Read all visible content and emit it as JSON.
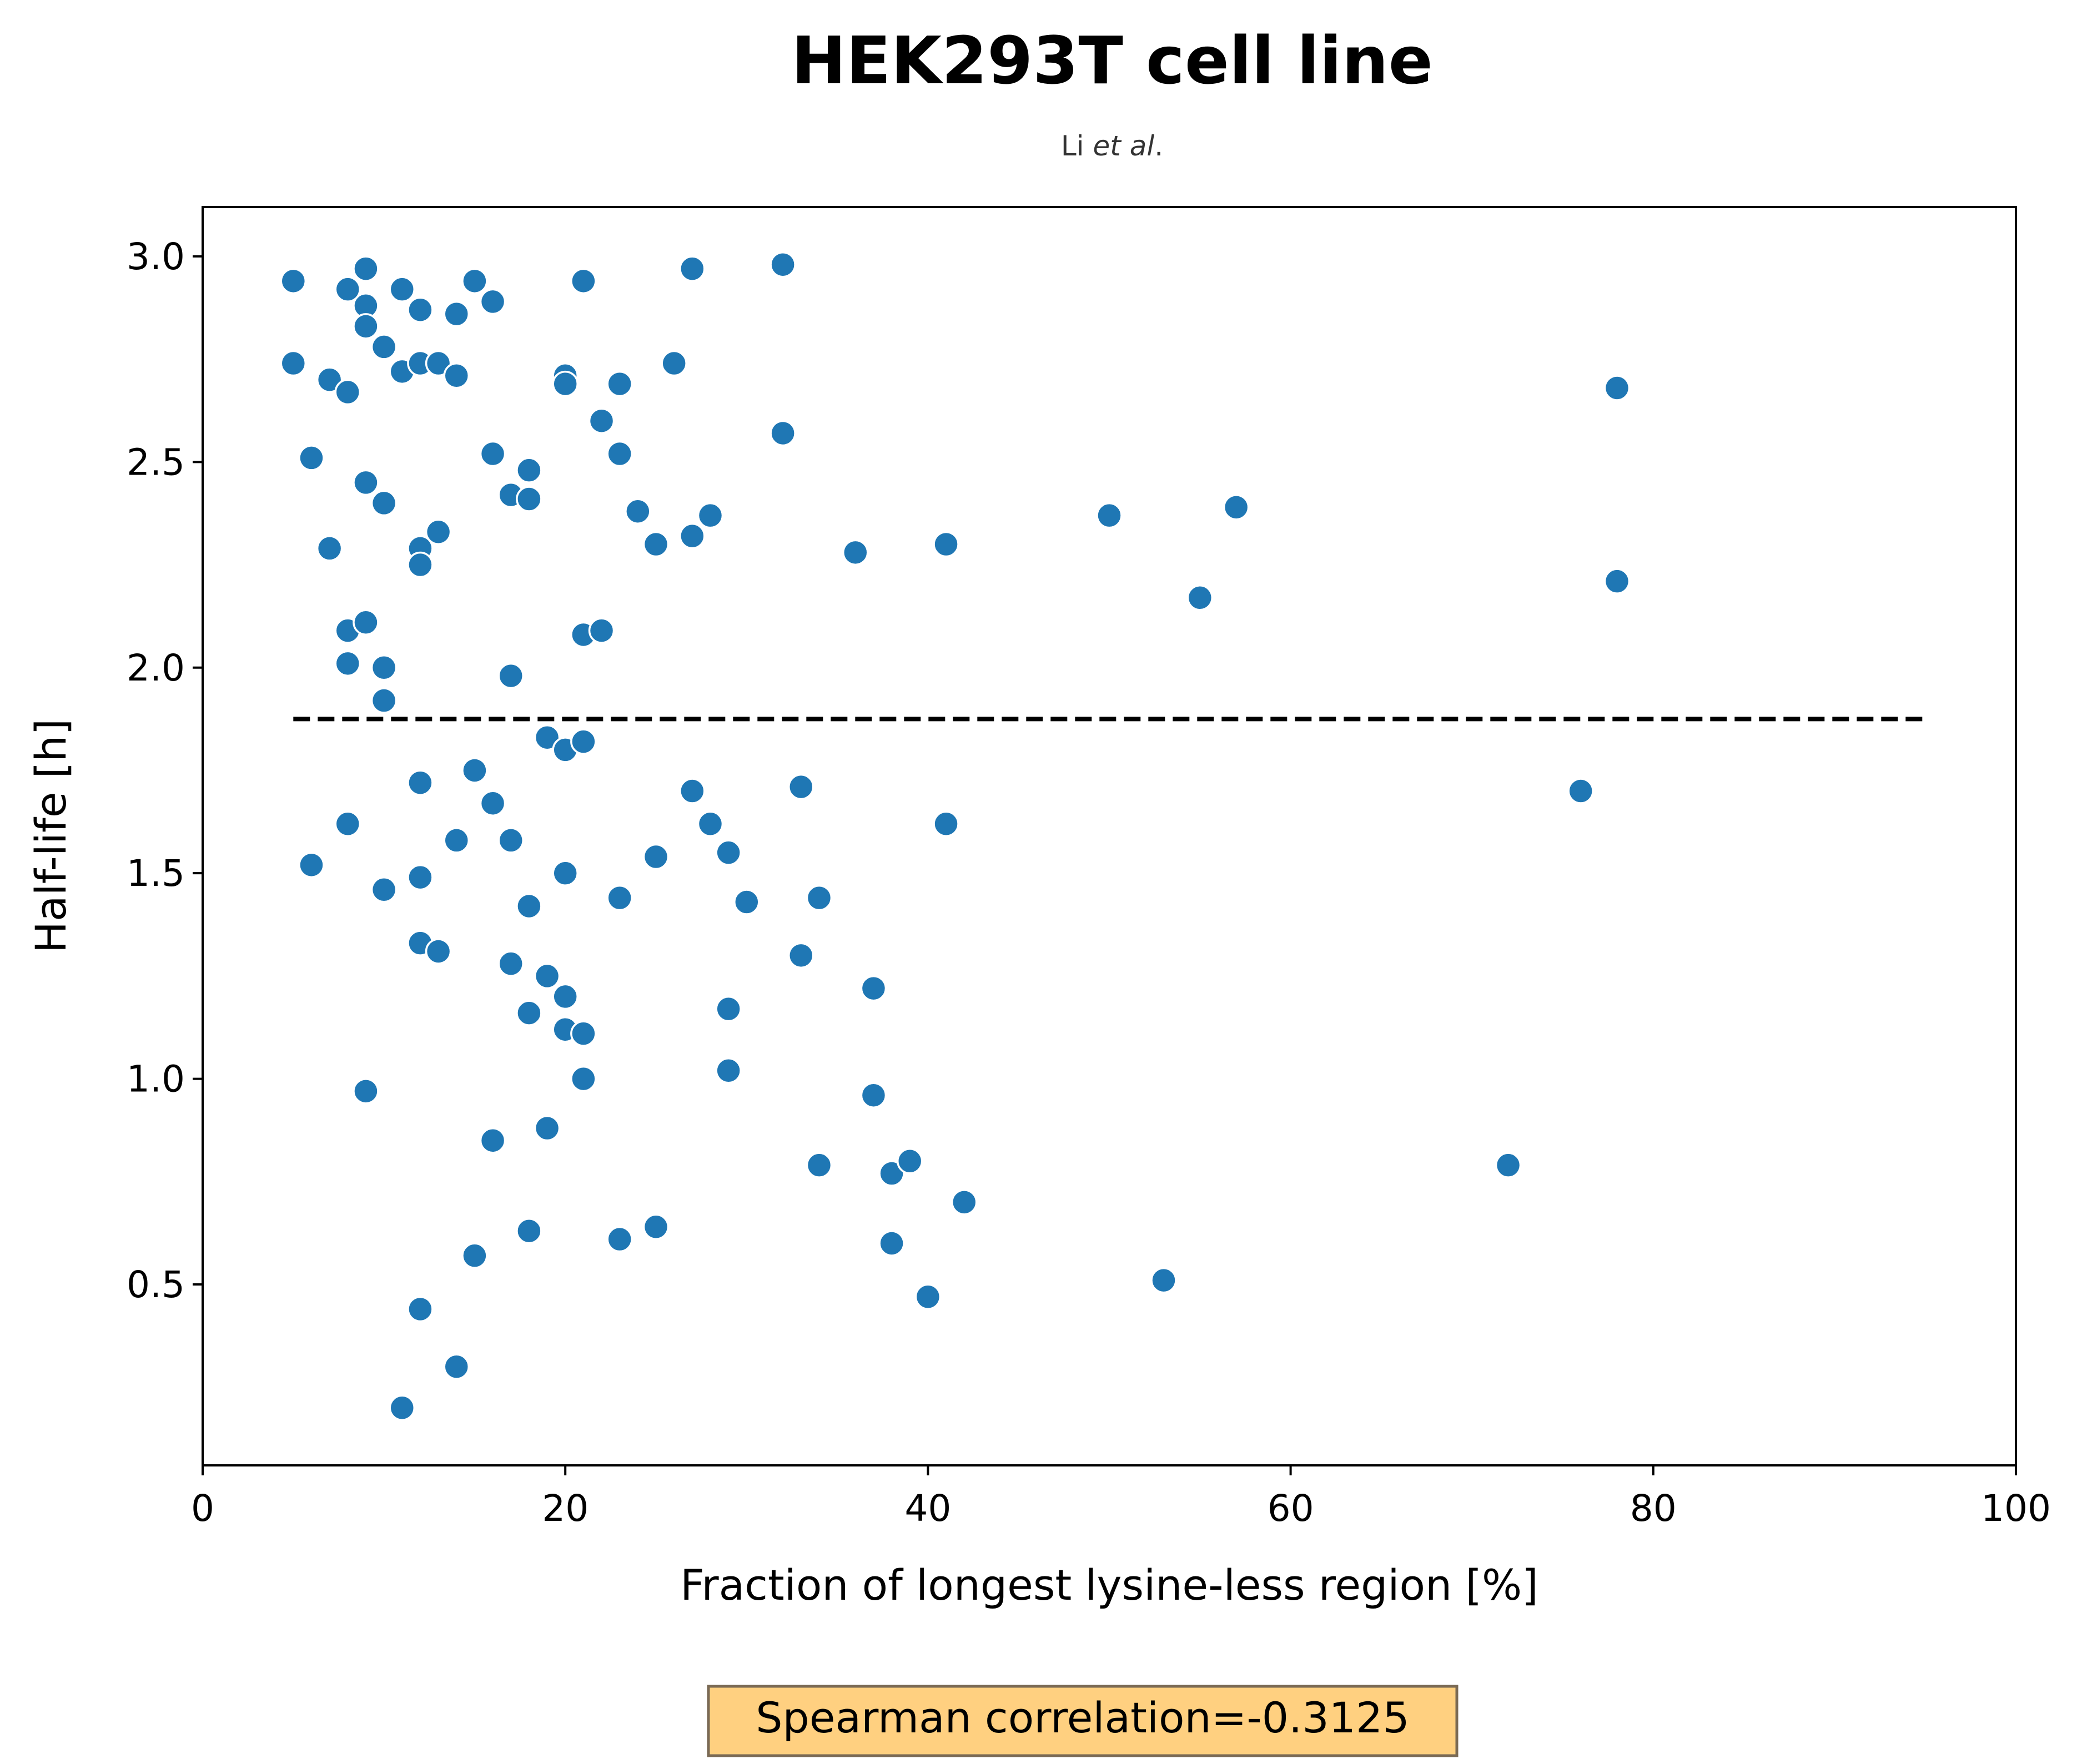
{
  "chart_data": {
    "type": "scatter",
    "title": "HEK293T cell line",
    "subtitle": {
      "prefix": "Li ",
      "italic": "et al",
      "suffix": "."
    },
    "xlabel": "Fraction of longest lysine-less region [%]",
    "ylabel": "Half-life [h]",
    "xlim": [
      0,
      100
    ],
    "ylim": [
      0.06,
      3.12
    ],
    "xticks": [
      0,
      20,
      40,
      60,
      80,
      100
    ],
    "xtick_labels": [
      "0",
      "20",
      "40",
      "60",
      "80",
      "100"
    ],
    "yticks": [
      0.5,
      1.0,
      1.5,
      2.0,
      2.5,
      3.0
    ],
    "ytick_labels": [
      "0.5",
      "1.0",
      "1.5",
      "2.0",
      "2.5",
      "3.0"
    ],
    "grid": false,
    "legend": null,
    "marker_color": "#1f77b4",
    "points": [
      {
        "x": 5,
        "y": 2.94
      },
      {
        "x": 5,
        "y": 2.74
      },
      {
        "x": 6,
        "y": 2.51
      },
      {
        "x": 6,
        "y": 1.52
      },
      {
        "x": 7,
        "y": 2.7
      },
      {
        "x": 7,
        "y": 2.29
      },
      {
        "x": 8,
        "y": 2.92
      },
      {
        "x": 8,
        "y": 2.67
      },
      {
        "x": 8,
        "y": 2.09
      },
      {
        "x": 8,
        "y": 2.01
      },
      {
        "x": 8,
        "y": 1.62
      },
      {
        "x": 9,
        "y": 2.97
      },
      {
        "x": 9,
        "y": 2.88
      },
      {
        "x": 9,
        "y": 2.83
      },
      {
        "x": 9,
        "y": 2.45
      },
      {
        "x": 9,
        "y": 2.11
      },
      {
        "x": 9,
        "y": 0.97
      },
      {
        "x": 10,
        "y": 2.78
      },
      {
        "x": 10,
        "y": 2.4
      },
      {
        "x": 10,
        "y": 2.0
      },
      {
        "x": 10,
        "y": 1.92
      },
      {
        "x": 10,
        "y": 1.46
      },
      {
        "x": 11,
        "y": 2.92
      },
      {
        "x": 11,
        "y": 2.72
      },
      {
        "x": 11,
        "y": 0.2
      },
      {
        "x": 12,
        "y": 2.87
      },
      {
        "x": 12,
        "y": 2.74
      },
      {
        "x": 12,
        "y": 2.29
      },
      {
        "x": 12,
        "y": 2.25
      },
      {
        "x": 12,
        "y": 1.72
      },
      {
        "x": 12,
        "y": 1.49
      },
      {
        "x": 12,
        "y": 1.33
      },
      {
        "x": 12,
        "y": 0.44
      },
      {
        "x": 13,
        "y": 2.74
      },
      {
        "x": 13,
        "y": 2.33
      },
      {
        "x": 13,
        "y": 1.31
      },
      {
        "x": 14,
        "y": 2.86
      },
      {
        "x": 14,
        "y": 2.71
      },
      {
        "x": 14,
        "y": 1.58
      },
      {
        "x": 14,
        "y": 0.3
      },
      {
        "x": 15,
        "y": 2.94
      },
      {
        "x": 15,
        "y": 1.75
      },
      {
        "x": 15,
        "y": 0.57
      },
      {
        "x": 16,
        "y": 2.89
      },
      {
        "x": 16,
        "y": 2.52
      },
      {
        "x": 16,
        "y": 1.67
      },
      {
        "x": 16,
        "y": 0.85
      },
      {
        "x": 17,
        "y": 2.42
      },
      {
        "x": 17,
        "y": 1.98
      },
      {
        "x": 17,
        "y": 1.58
      },
      {
        "x": 17,
        "y": 1.28
      },
      {
        "x": 18,
        "y": 2.48
      },
      {
        "x": 18,
        "y": 2.41
      },
      {
        "x": 18,
        "y": 1.42
      },
      {
        "x": 18,
        "y": 1.16
      },
      {
        "x": 18,
        "y": 0.63
      },
      {
        "x": 19,
        "y": 1.83
      },
      {
        "x": 19,
        "y": 1.25
      },
      {
        "x": 19,
        "y": 0.88
      },
      {
        "x": 20,
        "y": 2.71
      },
      {
        "x": 20,
        "y": 2.69
      },
      {
        "x": 20,
        "y": 1.8
      },
      {
        "x": 20,
        "y": 1.5
      },
      {
        "x": 20,
        "y": 1.2
      },
      {
        "x": 20,
        "y": 1.12
      },
      {
        "x": 21,
        "y": 2.94
      },
      {
        "x": 21,
        "y": 2.08
      },
      {
        "x": 21,
        "y": 1.82
      },
      {
        "x": 21,
        "y": 1.11
      },
      {
        "x": 21,
        "y": 1.0
      },
      {
        "x": 22,
        "y": 2.6
      },
      {
        "x": 22,
        "y": 2.09
      },
      {
        "x": 23,
        "y": 2.69
      },
      {
        "x": 23,
        "y": 2.52
      },
      {
        "x": 23,
        "y": 1.44
      },
      {
        "x": 23,
        "y": 0.61
      },
      {
        "x": 24,
        "y": 2.38
      },
      {
        "x": 25,
        "y": 2.3
      },
      {
        "x": 25,
        "y": 1.54
      },
      {
        "x": 25,
        "y": 0.64
      },
      {
        "x": 26,
        "y": 2.74
      },
      {
        "x": 27,
        "y": 2.97
      },
      {
        "x": 27,
        "y": 2.32
      },
      {
        "x": 27,
        "y": 1.7
      },
      {
        "x": 28,
        "y": 2.37
      },
      {
        "x": 28,
        "y": 1.62
      },
      {
        "x": 29,
        "y": 1.55
      },
      {
        "x": 29,
        "y": 1.17
      },
      {
        "x": 29,
        "y": 1.02
      },
      {
        "x": 30,
        "y": 1.43
      },
      {
        "x": 32,
        "y": 2.98
      },
      {
        "x": 32,
        "y": 2.57
      },
      {
        "x": 33,
        "y": 1.71
      },
      {
        "x": 33,
        "y": 1.3
      },
      {
        "x": 34,
        "y": 1.44
      },
      {
        "x": 34,
        "y": 0.79
      },
      {
        "x": 36,
        "y": 2.28
      },
      {
        "x": 37,
        "y": 1.22
      },
      {
        "x": 37,
        "y": 0.96
      },
      {
        "x": 38,
        "y": 0.77
      },
      {
        "x": 38,
        "y": 0.6
      },
      {
        "x": 39,
        "y": 0.8
      },
      {
        "x": 40,
        "y": 0.47
      },
      {
        "x": 41,
        "y": 2.3
      },
      {
        "x": 41,
        "y": 1.62
      },
      {
        "x": 42,
        "y": 0.7
      },
      {
        "x": 50,
        "y": 2.37
      },
      {
        "x": 53,
        "y": 0.51
      },
      {
        "x": 55,
        "y": 2.17
      },
      {
        "x": 57,
        "y": 2.39
      },
      {
        "x": 72,
        "y": 0.79
      },
      {
        "x": 76,
        "y": 1.7
      },
      {
        "x": 78,
        "y": 2.68
      },
      {
        "x": 78,
        "y": 2.21
      }
    ],
    "reference_line": {
      "y": 1.875,
      "x_start": 5,
      "x_end": 95,
      "style": "dashed",
      "color": "#000000"
    },
    "annotation": {
      "text": "Spearman correlation=-0.3125",
      "background": "#ffd080",
      "border": "#7a6a55"
    }
  }
}
